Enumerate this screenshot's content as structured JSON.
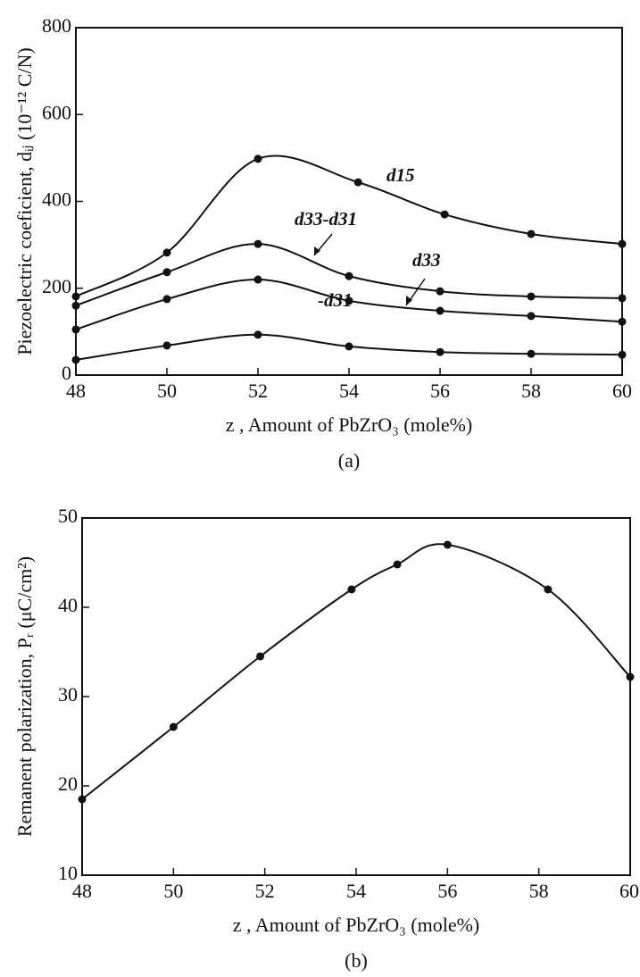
{
  "chart_data": [
    {
      "type": "line",
      "caption": "(a)",
      "x_label": "z , Amount of PbZrO₃ (mole%)",
      "y_label": "Piezoelectric coeficient, dᵢⱼ (10⁻¹² C/N)",
      "xlim": [
        48,
        60
      ],
      "xticks": [
        48,
        50,
        52,
        54,
        56,
        58,
        60
      ],
      "ylim": [
        0,
        800
      ],
      "yticks": [
        0,
        200,
        400,
        600,
        800
      ],
      "series": [
        {
          "name": "d15",
          "color": "#111111",
          "x": [
            48,
            50,
            52,
            54.2,
            56.1,
            58,
            60
          ],
          "values": [
            181,
            282,
            498,
            444,
            370,
            325,
            302
          ]
        },
        {
          "name": "d33-d31",
          "color": "#111111",
          "x": [
            48,
            50,
            52,
            54,
            56,
            58,
            60
          ],
          "values": [
            160,
            237,
            302,
            228,
            193,
            181,
            177
          ]
        },
        {
          "name": "d33",
          "color": "#111111",
          "x": [
            48,
            50,
            52,
            54,
            56,
            58,
            60
          ],
          "values": [
            105,
            175,
            220,
            171,
            148,
            136,
            123
          ]
        },
        {
          "name": "-d31",
          "color": "#111111",
          "x": [
            48,
            50,
            52,
            54,
            56,
            58,
            60
          ],
          "values": [
            35,
            68,
            93,
            66,
            53,
            49,
            47
          ]
        }
      ]
    },
    {
      "type": "line",
      "caption": "(b)",
      "x_label": "z , Amount of PbZrO₃ (mole%)",
      "y_label": "Remanent polarization, Pᵣ (μC/cm²)",
      "xlim": [
        48,
        60
      ],
      "xticks": [
        48,
        50,
        52,
        54,
        56,
        58,
        60
      ],
      "ylim": [
        10,
        50
      ],
      "yticks": [
        10,
        20,
        30,
        40,
        50
      ],
      "series": [
        {
          "color": "#111111",
          "x": [
            48,
            50,
            51.9,
            53.9,
            54.9,
            56,
            58.2,
            60
          ],
          "values": [
            18.5,
            26.6,
            34.5,
            42,
            44.8,
            47,
            42,
            32.2
          ]
        }
      ]
    }
  ]
}
